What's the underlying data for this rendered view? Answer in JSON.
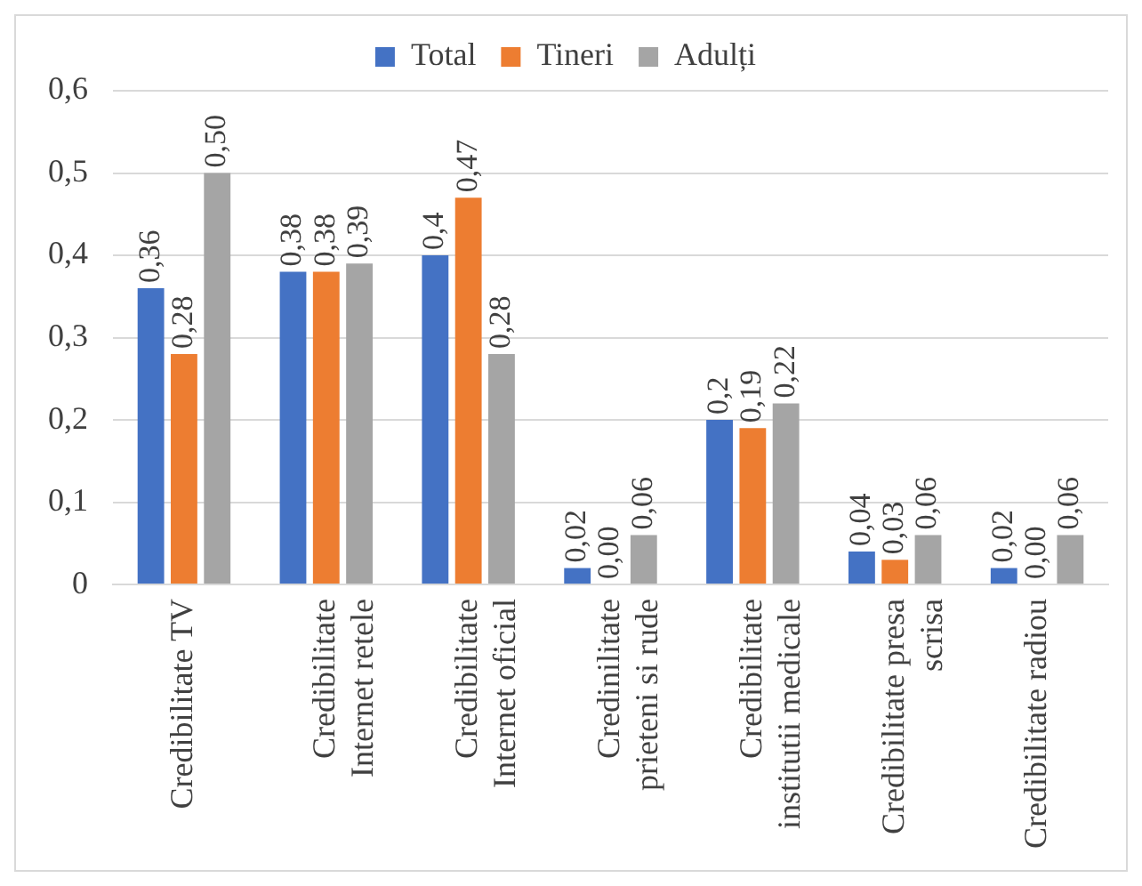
{
  "chart_data": {
    "type": "bar",
    "categories": [
      "Credibilitate TV",
      "Credibilitate Internet retele",
      "Credibilitate Internet oficial",
      "Credinilitate prieteni si rude",
      "Credibilitate institutii medicale",
      "Credibilitate presa scrisa",
      "Credibilitate radiou"
    ],
    "series": [
      {
        "name": "Total",
        "color": "#4472c4",
        "values": [
          0.36,
          0.38,
          0.4,
          0.02,
          0.2,
          0.04,
          0.02
        ],
        "value_labels": [
          "0,36",
          "0,38",
          "0,4",
          "0,02",
          "0,2",
          "0,04",
          "0,02"
        ]
      },
      {
        "name": "Tineri",
        "color": "#ed7d31",
        "values": [
          0.28,
          0.38,
          0.47,
          0,
          0.19,
          0.03,
          0
        ],
        "value_labels": [
          "0,28",
          "0,38",
          "0,47",
          "0,00",
          "0,19",
          "0,03",
          "0,00"
        ]
      },
      {
        "name": "Adulți",
        "color": "#a5a5a5",
        "values": [
          0.5,
          0.39,
          0.28,
          0.06,
          0.22,
          0.06,
          0.06
        ],
        "value_labels": [
          "0,50",
          "0,39",
          "0,28",
          "0,06",
          "0,22",
          "0,06",
          "0,06"
        ]
      }
    ],
    "ylim": [
      0,
      0.6
    ],
    "yticks": [
      0,
      {
        "value": 0.1,
        "label": "0,1"
      },
      {
        "value": 0.2,
        "label": "0,2"
      },
      {
        "value": 0.3,
        "label": "0,3"
      },
      {
        "value": 0.4,
        "label": "0,4"
      },
      {
        "value": 0.5,
        "label": "0,5"
      },
      {
        "value": 0.6,
        "label": "0,6"
      }
    ],
    "grid": "y",
    "legend": "top"
  }
}
